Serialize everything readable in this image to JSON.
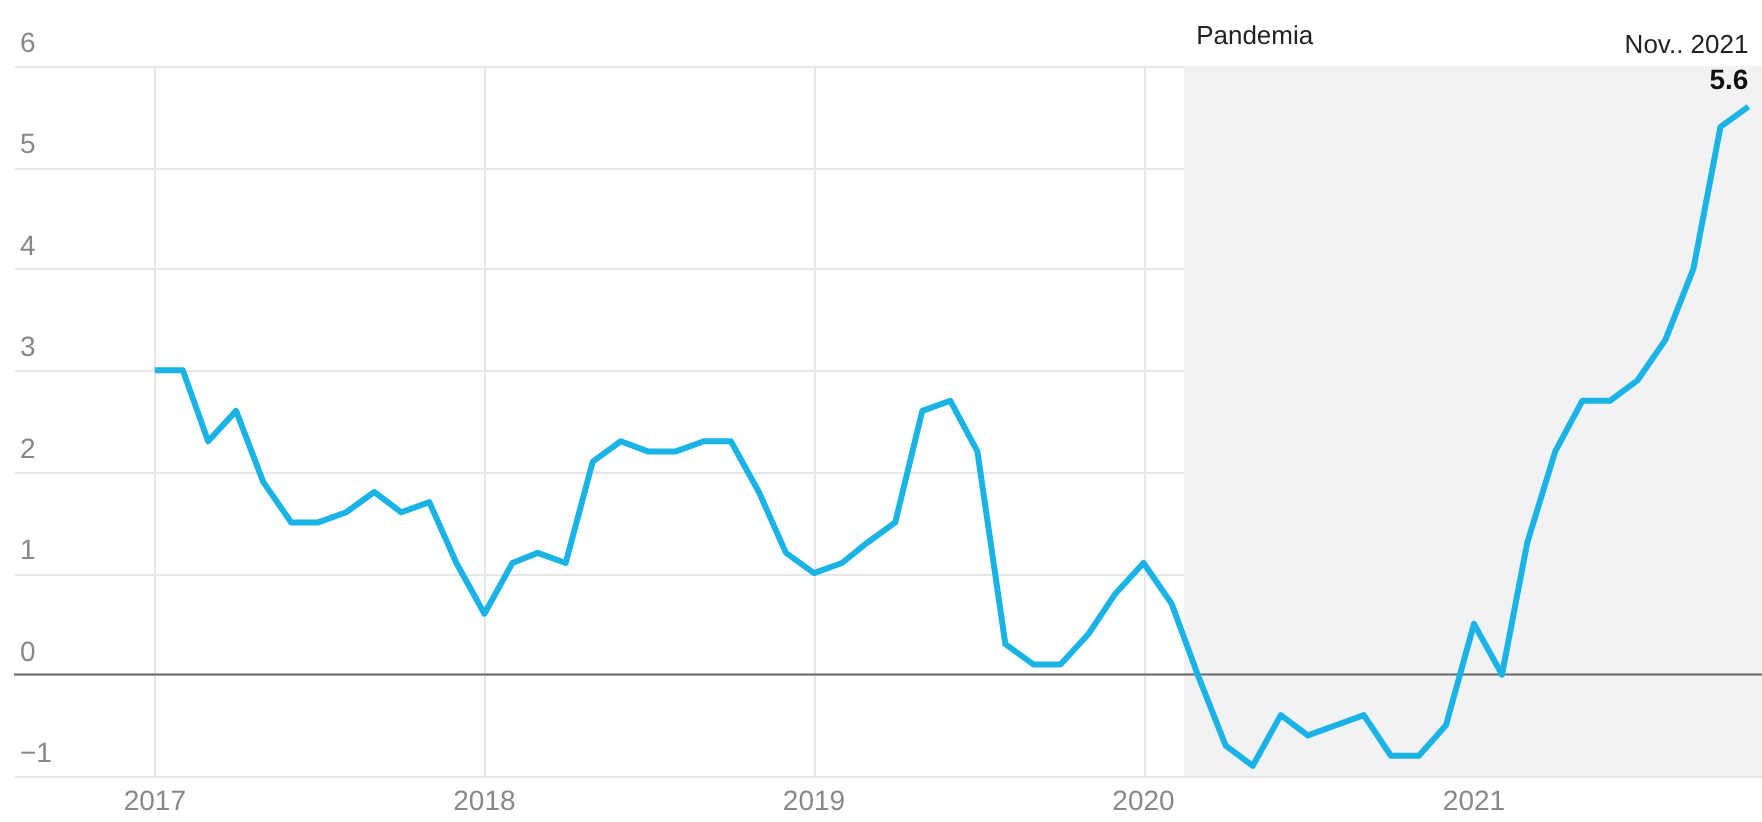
{
  "chart_data": {
    "type": "line",
    "x": [
      "2017-01",
      "2017-02",
      "2017-03",
      "2017-04",
      "2017-05",
      "2017-06",
      "2017-07",
      "2017-08",
      "2017-09",
      "2017-10",
      "2017-11",
      "2017-12",
      "2018-01",
      "2018-02",
      "2018-03",
      "2018-04",
      "2018-05",
      "2018-06",
      "2018-07",
      "2018-08",
      "2018-09",
      "2018-10",
      "2018-11",
      "2018-12",
      "2019-01",
      "2019-02",
      "2019-03",
      "2019-04",
      "2019-05",
      "2019-06",
      "2019-07",
      "2019-08",
      "2019-09",
      "2019-10",
      "2019-11",
      "2019-12",
      "2020-01",
      "2020-02",
      "2020-03",
      "2020-04",
      "2020-05",
      "2020-06",
      "2020-07",
      "2020-08",
      "2020-09",
      "2020-10",
      "2020-11",
      "2020-12",
      "2021-01",
      "2021-02",
      "2021-03",
      "2021-04",
      "2021-05",
      "2021-06",
      "2021-07",
      "2021-08",
      "2021-09",
      "2021-10",
      "2021-11"
    ],
    "series": [
      {
        "color": "#1ab3e6",
        "values": [
          3.0,
          3.0,
          2.3,
          2.6,
          1.9,
          1.5,
          1.5,
          1.6,
          1.8,
          1.6,
          1.7,
          1.1,
          0.6,
          1.1,
          1.2,
          1.1,
          2.1,
          2.3,
          2.2,
          2.2,
          2.3,
          2.3,
          1.8,
          1.2,
          1.0,
          1.1,
          1.3,
          1.5,
          2.6,
          2.7,
          2.2,
          0.3,
          0.1,
          0.1,
          0.4,
          0.8,
          1.1,
          0.7,
          0.0,
          -0.7,
          -0.9,
          -0.4,
          -0.6,
          -0.5,
          -0.4,
          -0.8,
          -0.8,
          -0.5,
          0.5,
          0.0,
          1.3,
          2.2,
          2.7,
          2.7,
          2.9,
          3.3,
          4.0,
          5.4,
          5.6
        ],
        "value_labels": [
          null,
          null,
          null,
          null,
          null,
          null,
          null,
          null,
          null,
          null,
          null,
          null,
          null,
          null,
          null,
          null,
          null,
          null,
          null,
          null,
          null,
          null,
          null,
          null,
          null,
          null,
          null,
          null,
          null,
          null,
          null,
          null,
          null,
          null,
          null,
          null,
          null,
          null,
          null,
          null,
          null,
          null,
          null,
          null,
          null,
          null,
          null,
          null,
          null,
          null,
          null,
          null,
          null,
          null,
          null,
          null,
          null,
          null,
          "5.6"
        ]
      }
    ],
    "xlim": [
      "2016-07-29",
      "2021-11-16"
    ],
    "xticks": [
      {
        "value": "2017-01-01",
        "label": "2017"
      },
      {
        "value": "2018-01-01",
        "label": "2018"
      },
      {
        "value": "2019-01-01",
        "label": "2019"
      },
      {
        "value": "2020-01-01",
        "label": "2020"
      },
      {
        "value": "2021-01-01",
        "label": "2021"
      }
    ],
    "ylim": [
      -1,
      6
    ],
    "yticks": [
      {
        "value": -1,
        "label": "−1"
      },
      0,
      1,
      2,
      3,
      4,
      5,
      6
    ],
    "grid": true,
    "marker": "none",
    "line_style": "solid",
    "ref_lines": [
      {
        "axis": "y",
        "value": 0,
        "label": null,
        "color": "#666666"
      }
    ],
    "bands": [
      {
        "axis": "x",
        "from": "2020-02-15",
        "to": "2021-11-16",
        "label": "Pandemia",
        "color": "#f1f2f4"
      }
    ],
    "annotations": [
      {
        "text": "Nov.. 2021",
        "x": "2021-11",
        "y": 5.6
      }
    ]
  }
}
